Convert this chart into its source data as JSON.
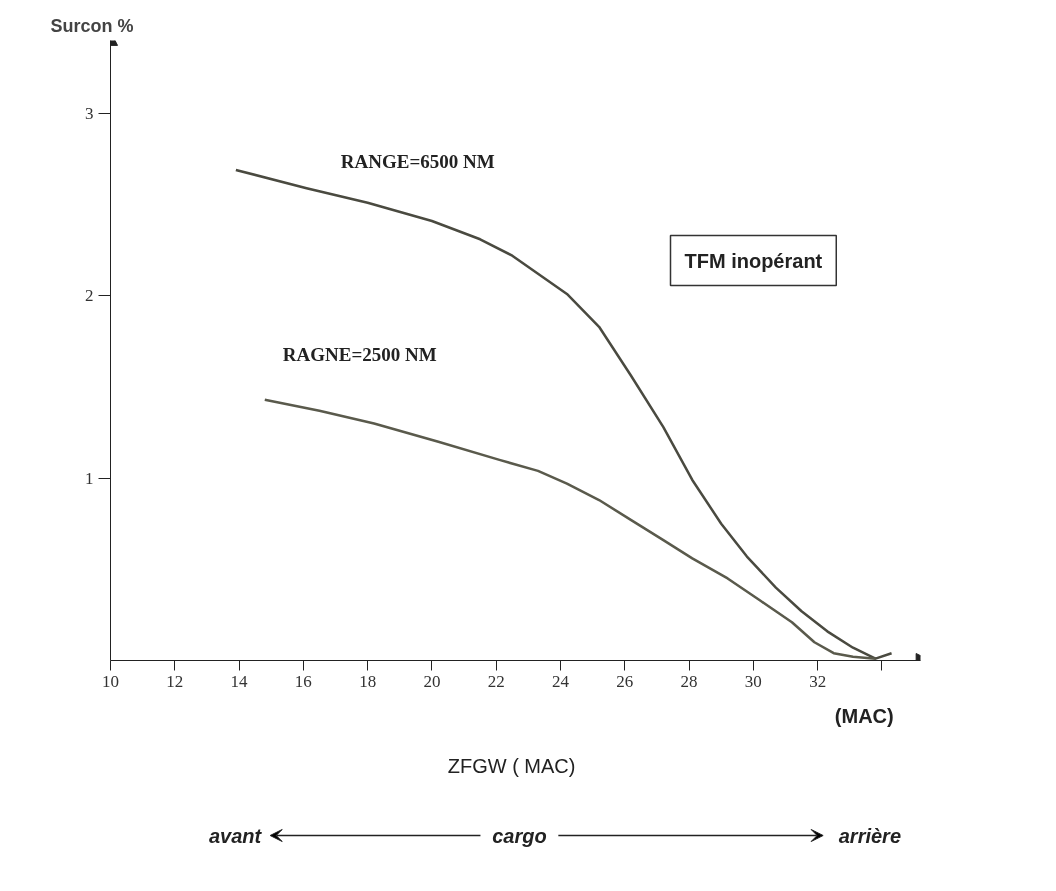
{
  "chart_data": {
    "type": "line",
    "ylabel": "Surcon %",
    "xlabel": "ZFGW ( MAC)",
    "annotations": [
      "TFM inopérant",
      "(MAC)",
      "avant",
      "cargo",
      "arrière"
    ],
    "xlim": [
      10,
      35.2
    ],
    "ylim": [
      0,
      3.4
    ],
    "xticks": [
      10,
      12,
      14,
      16,
      18,
      20,
      22,
      24,
      26,
      28,
      30,
      32,
      {
        "value": 34,
        "label": null
      }
    ],
    "yticks": [
      1,
      2,
      3
    ],
    "grid": false,
    "marker": "none",
    "line_style": "solid",
    "series": [
      {
        "name": "RANGE=6500 NM",
        "color": "#4a4a40",
        "x": [
          13.9,
          16.1,
          18,
          20,
          21.5,
          22.5,
          24.2,
          25.2,
          26.2,
          27.2,
          28.1,
          29,
          29.8,
          30.7,
          31.5,
          32.3,
          33.1,
          33.8,
          34.3
        ],
        "values": [
          2.69,
          2.59,
          2.51,
          2.41,
          2.31,
          2.22,
          2.01,
          1.83,
          1.56,
          1.28,
          0.99,
          0.75,
          0.57,
          0.4,
          0.27,
          0.16,
          0.07,
          0.01,
          0.04
        ]
      },
      {
        "name": "RAGNE=2500 NM",
        "color": "#5a5a4c",
        "x": [
          14.8,
          16.5,
          18.2,
          20.2,
          22.1,
          23.3,
          24.2,
          25.2,
          26.2,
          27.2,
          28.1,
          29.2,
          30.2,
          31.2,
          31.9,
          32.5,
          33.1,
          33.8
        ],
        "values": [
          1.43,
          1.37,
          1.3,
          1.2,
          1.1,
          1.04,
          0.97,
          0.88,
          0.77,
          0.66,
          0.56,
          0.45,
          0.33,
          0.21,
          0.1,
          0.04,
          0.02,
          0.01
        ]
      }
    ]
  }
}
